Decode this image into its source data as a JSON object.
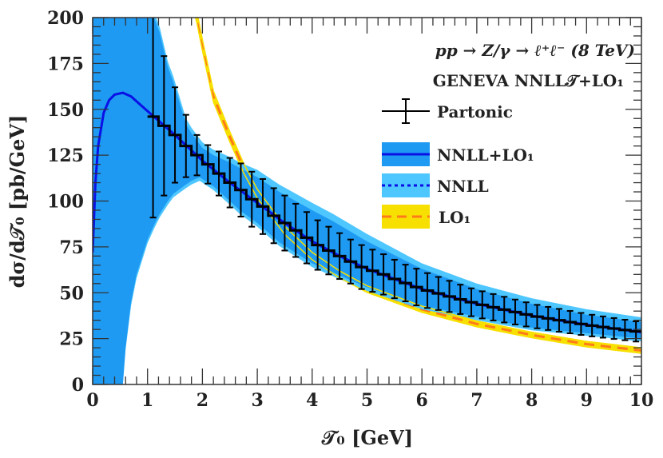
{
  "chart_data": {
    "type": "line",
    "xlabel": "𝒯₀ [GeV]",
    "ylabel": "dσ/d𝒯₀ [pb/GeV]",
    "xlim": [
      0,
      10
    ],
    "ylim": [
      0,
      200
    ],
    "xticks": [
      "0",
      "1",
      "2",
      "3",
      "4",
      "5",
      "6",
      "7",
      "8",
      "9",
      "10"
    ],
    "yticks": [
      "0",
      "25",
      "50",
      "75",
      "100",
      "125",
      "150",
      "175",
      "200"
    ],
    "grid": false,
    "legend_position": "top-right",
    "legend_title": "pp → Z/γ → ℓ⁺ℓ⁻  (8 TeV)",
    "legend_subtitle": "GENEVA NNLL𝒯+LO₁",
    "colors": {
      "nnll_lo1_band": "#1e9af3",
      "nnll_lo1_line": "#0a10e6",
      "nnll_band": "#4ec6ff",
      "nnll_line": "#0a10e6",
      "lo1_band": "#f7e000",
      "lo1_line": "#ff7a1a",
      "partonic": "#000000"
    },
    "series": [
      {
        "name": "Partonic",
        "kind": "histogram",
        "x": [
          1.1,
          1.3,
          1.5,
          1.7,
          1.9,
          2.1,
          2.3,
          2.5,
          2.7,
          2.9,
          3.1,
          3.3,
          3.5,
          3.7,
          3.9,
          4.1,
          4.3,
          4.5,
          4.7,
          4.9,
          5.1,
          5.3,
          5.5,
          5.7,
          5.9,
          6.1,
          6.3,
          6.5,
          6.7,
          6.9,
          7.1,
          7.3,
          7.5,
          7.7,
          7.9,
          8.1,
          8.3,
          8.5,
          8.7,
          8.9,
          9.1,
          9.3,
          9.5,
          9.7,
          9.9
        ],
        "bin_width": 0.2,
        "y": [
          146,
          141,
          136,
          130,
          125,
          120,
          115,
          110,
          106,
          101,
          97,
          92,
          88,
          84,
          80,
          76,
          73,
          70,
          67,
          64,
          62,
          60,
          57.5,
          55.3,
          53.1,
          51.2,
          49.6,
          48,
          46.4,
          44.8,
          43.4,
          42.1,
          40.8,
          39.5,
          38.2,
          37,
          36,
          35,
          34,
          33,
          32.1,
          31.3,
          30.5,
          29.7,
          28.9
        ],
        "err": [
          55,
          38,
          26,
          17,
          11,
          10.5,
          12,
          13.5,
          14.5,
          15,
          15,
          15,
          15,
          14.5,
          14,
          13.5,
          13,
          12.5,
          12,
          12,
          11.5,
          11,
          10.5,
          10,
          10,
          9.5,
          9,
          8.5,
          8,
          7.6,
          7.4,
          7.2,
          7,
          6.8,
          6.6,
          6.4,
          6.3,
          6.2,
          6.1,
          6,
          5.9,
          5.8,
          5.7,
          5.6,
          5.5
        ]
      },
      {
        "name": "NNLL+LO₁",
        "kind": "line+band",
        "x": [
          0,
          0.05,
          0.1,
          0.2,
          0.3,
          0.4,
          0.55,
          0.7,
          1.0,
          1.5,
          2,
          2.5,
          3,
          3.5,
          4,
          4.5,
          5,
          6,
          7,
          8,
          9,
          10
        ],
        "y": [
          72,
          110,
          130,
          148,
          155,
          158,
          159,
          157,
          149,
          136,
          122,
          110,
          99,
          88,
          78,
          70,
          63,
          52,
          44,
          37.5,
          32.5,
          28.5
        ],
        "band_x": [
          0,
          0.55,
          0.6,
          0.7,
          0.8,
          1.0,
          1.12,
          1.22,
          1.37,
          1.47,
          1.7,
          1.8,
          1.95,
          2.0,
          2.2,
          2.5,
          2.68,
          3,
          3.4,
          4,
          4.38,
          5,
          6,
          7,
          8,
          9,
          10
        ],
        "band_lo": [
          0,
          0,
          20,
          45,
          60,
          79,
          87,
          93,
          100,
          104,
          109,
          111,
          113,
          112,
          108,
          100,
          95,
          88,
          77.5,
          66,
          61,
          53,
          43,
          37,
          31,
          28,
          25
        ],
        "band_hi": [
          260,
          260,
          260,
          250,
          235,
          215,
          200,
          192,
          173,
          165,
          142,
          137,
          131,
          129,
          125,
          121,
          118,
          113,
          105,
          95,
          89,
          78,
          63,
          52,
          44,
          38,
          34
        ]
      },
      {
        "name": "NNLL",
        "kind": "line+band",
        "band_x": [
          0,
          0.55,
          0.6,
          0.7,
          0.8,
          1.0,
          1.12,
          1.22,
          1.37,
          1.47,
          1.7,
          1.8,
          1.95,
          2.0,
          2.2,
          2.5,
          2.68,
          3,
          3.4,
          4,
          4.38,
          5,
          6,
          7,
          8,
          9,
          10
        ],
        "band_lo": [
          0,
          0,
          19,
          43,
          58,
          77,
          85,
          91,
          98,
          102,
          107,
          109,
          111,
          110,
          106,
          98,
          93,
          86,
          75.5,
          64,
          59,
          51,
          41,
          35,
          29.5,
          26.5,
          23.5
        ],
        "band_hi": [
          260,
          260,
          260,
          252,
          237,
          218,
          203,
          195,
          176,
          168,
          145,
          140,
          134,
          132,
          128,
          124,
          121,
          117,
          109,
          99,
          93,
          82,
          66,
          55,
          47,
          41,
          36.6
        ]
      },
      {
        "name": "LO₁",
        "kind": "dashed-line+band",
        "x": [
          1.85,
          1.9,
          2.0,
          2.2,
          2.5,
          2.75,
          3,
          3.5,
          4,
          4.5,
          5,
          6,
          7,
          8,
          9,
          10
        ],
        "y": [
          206,
          200,
          185,
          157,
          135,
          118,
          104,
          84,
          70,
          60,
          52,
          41,
          33,
          27,
          22,
          18.5
        ],
        "band_halfwidth": [
          3,
          3,
          3,
          3,
          2.8,
          2.6,
          2.4,
          2.2,
          2,
          1.9,
          1.8,
          1.7,
          1.6,
          1.5,
          1.5,
          1.5
        ]
      }
    ]
  }
}
